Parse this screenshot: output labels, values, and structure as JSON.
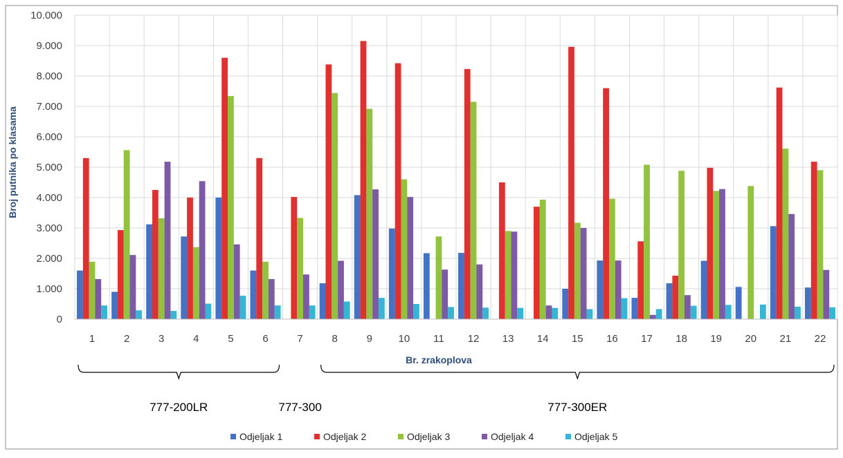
{
  "chart_data": {
    "type": "bar",
    "title": "",
    "xlabel": "Br. zrakoplova",
    "ylabel": "Broj putnika po klasama",
    "ylim": [
      0,
      10000
    ],
    "yticks": [
      "0",
      "1.000",
      "2.000",
      "3.000",
      "4.000",
      "5.000",
      "6.000",
      "7.000",
      "8.000",
      "9.000",
      "10.000"
    ],
    "grid": true,
    "legend_position": "bottom",
    "categories": [
      "1",
      "2",
      "3",
      "4",
      "5",
      "6",
      "7",
      "8",
      "9",
      "10",
      "11",
      "12",
      "13",
      "14",
      "15",
      "16",
      "17",
      "18",
      "19",
      "20",
      "21",
      "22"
    ],
    "series": [
      {
        "name": "Odjeljak 1",
        "color": "#4472c4",
        "values": [
          1600,
          900,
          3120,
          2720,
          4000,
          1600,
          0,
          1180,
          4080,
          2980,
          2170,
          2180,
          0,
          0,
          1000,
          1930,
          700,
          1180,
          1920,
          1060,
          3060,
          1040
        ]
      },
      {
        "name": "Odjeljak 2",
        "color": "#e0302f",
        "values": [
          5300,
          2930,
          4250,
          4000,
          8600,
          5300,
          4020,
          8380,
          9150,
          8420,
          0,
          8230,
          4500,
          3700,
          8960,
          7600,
          2560,
          1430,
          4980,
          0,
          7620,
          5180
        ]
      },
      {
        "name": "Odjeljak 3",
        "color": "#92c23e",
        "values": [
          1890,
          5560,
          3320,
          2370,
          7340,
          1890,
          3330,
          7440,
          6920,
          4600,
          2720,
          7150,
          2900,
          3930,
          3170,
          3960,
          5080,
          4880,
          4220,
          4380,
          5610,
          4900
        ]
      },
      {
        "name": "Odjeljak 4",
        "color": "#7c5aa6",
        "values": [
          1320,
          2110,
          5180,
          4540,
          2460,
          1320,
          1470,
          1920,
          4270,
          4020,
          1630,
          1800,
          2880,
          450,
          3000,
          1930,
          140,
          790,
          4280,
          0,
          3460,
          1620
        ]
      },
      {
        "name": "Odjeljak 5",
        "color": "#36b5d4",
        "values": [
          450,
          290,
          270,
          510,
          770,
          450,
          450,
          580,
          700,
          500,
          400,
          380,
          370,
          370,
          330,
          690,
          330,
          440,
          470,
          480,
          410,
          390
        ]
      }
    ],
    "groups": [
      {
        "label": "777-200LR",
        "from": "1",
        "to": "6"
      },
      {
        "label": "777-300",
        "from": "7",
        "to": "7"
      },
      {
        "label": "777-300ER",
        "from": "8",
        "to": "22"
      }
    ]
  }
}
